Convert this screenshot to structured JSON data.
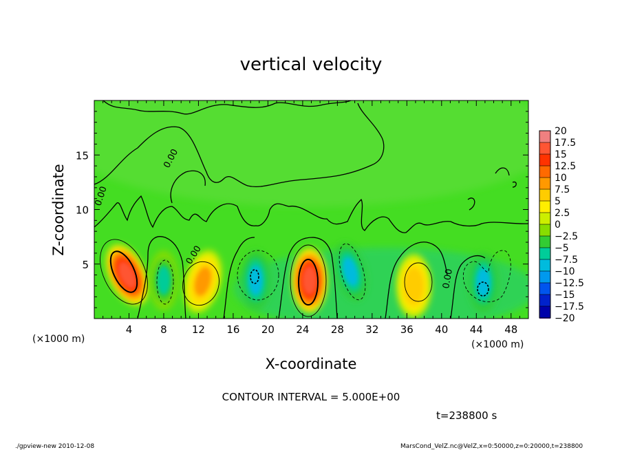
{
  "chart_data": {
    "type": "heatmap",
    "title": "vertical velocity",
    "xlabel": "X-coordinate",
    "ylabel": "Z-coordinate",
    "x_unit_left": "(×1000 m)",
    "x_unit_right": "(×1000 m)",
    "xlim": [
      0,
      50
    ],
    "ylim": [
      0,
      20
    ],
    "x_ticks": [
      4,
      8,
      12,
      16,
      20,
      24,
      28,
      32,
      36,
      40,
      44,
      48
    ],
    "x_tick_labels": [
      "4",
      "8",
      "12",
      "16",
      "20",
      "24",
      "28",
      "32",
      "36",
      "40",
      "44",
      "48"
    ],
    "y_ticks": [
      5,
      10,
      15
    ],
    "y_tick_labels": [
      "5",
      "10",
      "15"
    ],
    "contour_interval_text": "CONTOUR INTERVAL = 5.000E+00",
    "contour_labels": [
      "0.00",
      "0.00",
      "0.00",
      "0.00"
    ],
    "colorbar": {
      "levels": [
        20,
        17.5,
        15,
        12.5,
        10,
        7.5,
        5,
        2.5,
        0,
        -2.5,
        -5,
        -7.5,
        -10,
        -12.5,
        -15,
        -17.5,
        -20
      ],
      "labels": [
        "20",
        "17.5",
        "15",
        "12.5",
        "10",
        "7.5",
        "5",
        "2.5",
        "0",
        "−2.5",
        "−5",
        "−7.5",
        "−10",
        "−12.5",
        "−15",
        "−17.5",
        "−20"
      ],
      "colors": [
        "#f08080",
        "#ff5533",
        "#ff3300",
        "#ff6a00",
        "#ff9900",
        "#ffcc00",
        "#ffee00",
        "#ccee00",
        "#88dd00",
        "#33cc33",
        "#00cc99",
        "#00bbdd",
        "#0099ee",
        "#0055ee",
        "#0022cc",
        "#0000aa",
        "#5500aa"
      ]
    },
    "features": [
      {
        "x": 3.8,
        "z": 4.0,
        "peak": 17,
        "sign": "positive"
      },
      {
        "x": 8.0,
        "z": 3.5,
        "peak": -6,
        "sign": "negative"
      },
      {
        "x": 12.5,
        "z": 3.4,
        "peak": 8,
        "sign": "positive"
      },
      {
        "x": 18.6,
        "z": 3.5,
        "peak": -9,
        "sign": "negative"
      },
      {
        "x": 24.8,
        "z": 3.5,
        "peak": 17,
        "sign": "positive"
      },
      {
        "x": 29.5,
        "z": 4.3,
        "peak": -8,
        "sign": "negative"
      },
      {
        "x": 36.8,
        "z": 3.0,
        "peak": 7,
        "sign": "positive"
      },
      {
        "x": 44.8,
        "z": 3.3,
        "peak": -10,
        "sign": "negative"
      }
    ]
  },
  "footer": {
    "time": "t=238800 s",
    "left": "./gpview-new  2010-12-08",
    "right": "MarsCond_VelZ.nc@VelZ,x=0:50000,z=0:20000,t=238800"
  }
}
